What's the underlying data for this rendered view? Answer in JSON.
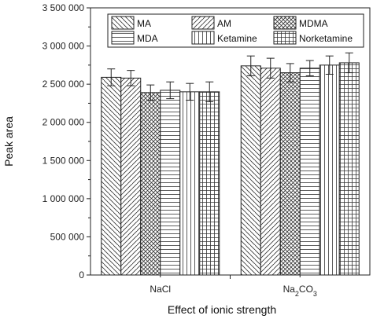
{
  "chart_data": {
    "type": "bar",
    "title": "",
    "xlabel": "Effect of ionic strength",
    "ylabel": "Peak area",
    "categories": [
      "NaCl",
      "Na2CO3"
    ],
    "category_labels": [
      {
        "main": "NaCl",
        "sub": ""
      },
      {
        "main": "Na",
        "sub": "2",
        "after": "CO",
        "sub2": "3"
      }
    ],
    "ylim": [
      0,
      3500000
    ],
    "yticks": [
      0,
      500000,
      1000000,
      1500000,
      2000000,
      2500000,
      3000000,
      3500000
    ],
    "ytick_labels": [
      "0",
      "500 000",
      "1 000 000",
      "1 500 000",
      "2 000 000",
      "2 500 000",
      "3 000 000",
      "3 500 000"
    ],
    "grid": false,
    "legend_position": "top",
    "series": [
      {
        "name": "MA",
        "pattern": "diag-back",
        "values": [
          2590000,
          2740000
        ],
        "errors": [
          110000,
          130000
        ]
      },
      {
        "name": "AM",
        "pattern": "diag-fwd",
        "values": [
          2580000,
          2710000
        ],
        "errors": [
          100000,
          130000
        ]
      },
      {
        "name": "MDMA",
        "pattern": "crosshatch-diag",
        "values": [
          2390000,
          2650000
        ],
        "errors": [
          100000,
          120000
        ]
      },
      {
        "name": "MDA",
        "pattern": "horizontal",
        "values": [
          2420000,
          2710000
        ],
        "errors": [
          110000,
          100000
        ]
      },
      {
        "name": "Ketamine",
        "pattern": "vertical",
        "values": [
          2400000,
          2750000
        ],
        "errors": [
          110000,
          120000
        ]
      },
      {
        "name": "Norketamine",
        "pattern": "grid",
        "values": [
          2400000,
          2780000
        ],
        "errors": [
          130000,
          130000
        ]
      }
    ]
  }
}
